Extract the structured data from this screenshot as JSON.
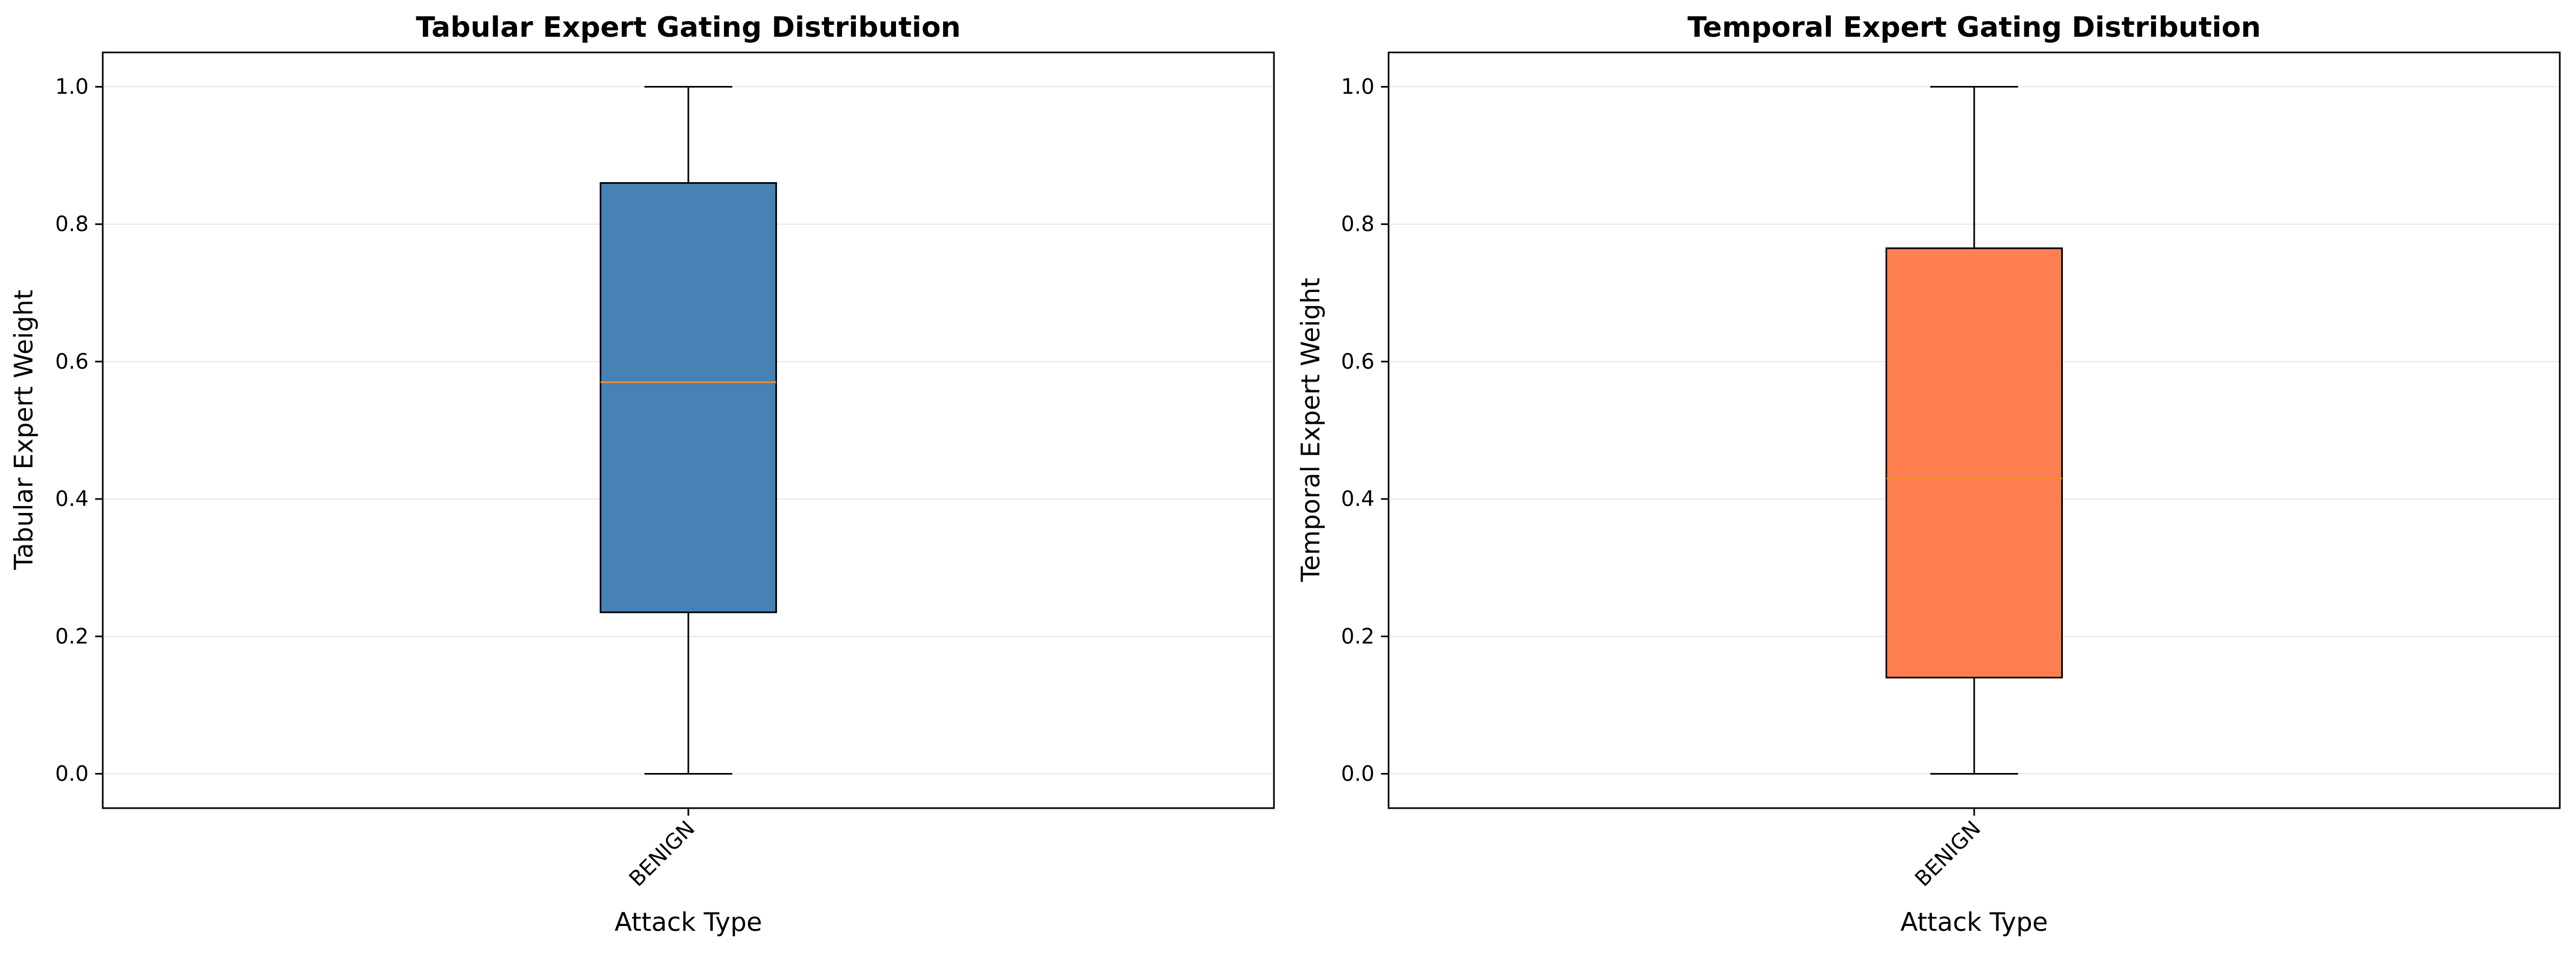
{
  "chart_data": [
    {
      "type": "box",
      "title": "Tabular Expert Gating Distribution",
      "xlabel": "Attack Type",
      "ylabel": "Tabular Expert Weight",
      "categories": [
        "BENIGN"
      ],
      "ylim": [
        -0.05,
        1.05
      ],
      "yticks": [
        "0.0",
        "0.2",
        "0.4",
        "0.6",
        "0.8",
        "1.0"
      ],
      "grid": "y",
      "box_color": "#4682B4",
      "median_color": "#F28E2B",
      "boxes": [
        {
          "category": "BENIGN",
          "whisker_low": 0.0,
          "q1": 0.235,
          "median": 0.57,
          "q3": 0.86,
          "whisker_high": 1.0
        }
      ]
    },
    {
      "type": "box",
      "title": "Temporal Expert Gating Distribution",
      "xlabel": "Attack Type",
      "ylabel": "Temporal Expert Weight",
      "categories": [
        "BENIGN"
      ],
      "ylim": [
        -0.05,
        1.05
      ],
      "yticks": [
        "0.0",
        "0.2",
        "0.4",
        "0.6",
        "0.8",
        "1.0"
      ],
      "grid": "y",
      "box_color": "#FF7F50",
      "median_color": "#F28E2B",
      "boxes": [
        {
          "category": "BENIGN",
          "whisker_low": 0.0,
          "q1": 0.14,
          "median": 0.43,
          "q3": 0.765,
          "whisker_high": 1.0
        }
      ]
    }
  ]
}
